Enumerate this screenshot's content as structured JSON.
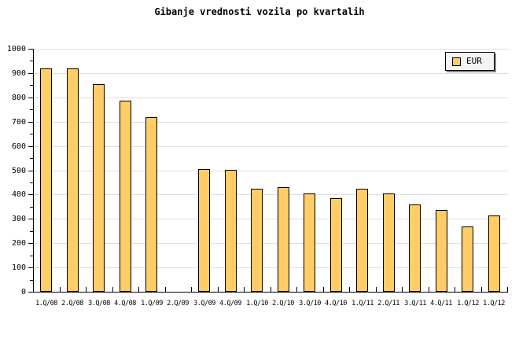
{
  "title": "Gibanje vrednosti vozila po kvartalih",
  "legend": {
    "label": "EUR"
  },
  "chart_data": {
    "type": "bar",
    "title": "Gibanje vrednosti vozila po kvartalih",
    "categories": [
      "1.Q/08",
      "2.Q/08",
      "3.Q/08",
      "4.Q/08",
      "1.Q/09",
      "2.Q/09",
      "3.Q/09",
      "4.Q/09",
      "1.Q/10",
      "2.Q/10",
      "3.Q/10",
      "4.Q/10",
      "1.Q/11",
      "2.Q/11",
      "3.Q/11",
      "4.Q/11",
      "1.Q/12",
      "1.Q/12"
    ],
    "series": [
      {
        "name": "EUR",
        "values": [
          920,
          920,
          855,
          785,
          720,
          null,
          505,
          500,
          425,
          430,
          405,
          385,
          425,
          405,
          360,
          335,
          270,
          315
        ]
      }
    ],
    "xlabel": "",
    "ylabel": "",
    "ylim": [
      0,
      1000
    ],
    "ytick_step": 100,
    "yminor_step": 50,
    "grid": true,
    "legend_position": "top-right",
    "colors": {
      "bar_fill": "#FFCC66",
      "bar_border": "#000000",
      "gridline": "#DEDEDE",
      "axis": "#000000",
      "legend_bg": "#F4F4F4",
      "legend_shadow": "#888888",
      "text": "#000000"
    }
  }
}
